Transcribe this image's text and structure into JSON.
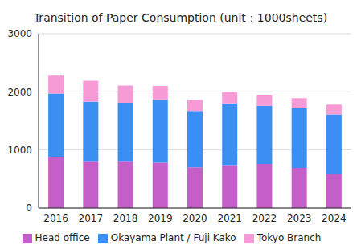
{
  "chart_data": {
    "type": "bar",
    "title": "Transition of Paper Consumption (unit：1000sheets)",
    "categories": [
      "2016",
      "2017",
      "2018",
      "2019",
      "2020",
      "2021",
      "2022",
      "2023",
      "2024"
    ],
    "series": [
      {
        "name": "Head office",
        "color": "#c45fc9",
        "values": [
          880,
          800,
          800,
          780,
          700,
          730,
          760,
          690,
          590
        ]
      },
      {
        "name": "Okayama Plant / Fuji Kako",
        "color": "#3b8ff2",
        "values": [
          1090,
          1030,
          1010,
          1090,
          970,
          1070,
          1000,
          1030,
          1020
        ]
      },
      {
        "name": "Tokyo Branch",
        "color": "#f79bd6",
        "values": [
          320,
          360,
          300,
          230,
          190,
          200,
          190,
          170,
          170
        ]
      }
    ],
    "ylim": [
      0,
      3000
    ],
    "yticks": [
      0,
      1000,
      2000,
      3000
    ],
    "grid": true,
    "stacked": true,
    "legend": "bottom"
  }
}
